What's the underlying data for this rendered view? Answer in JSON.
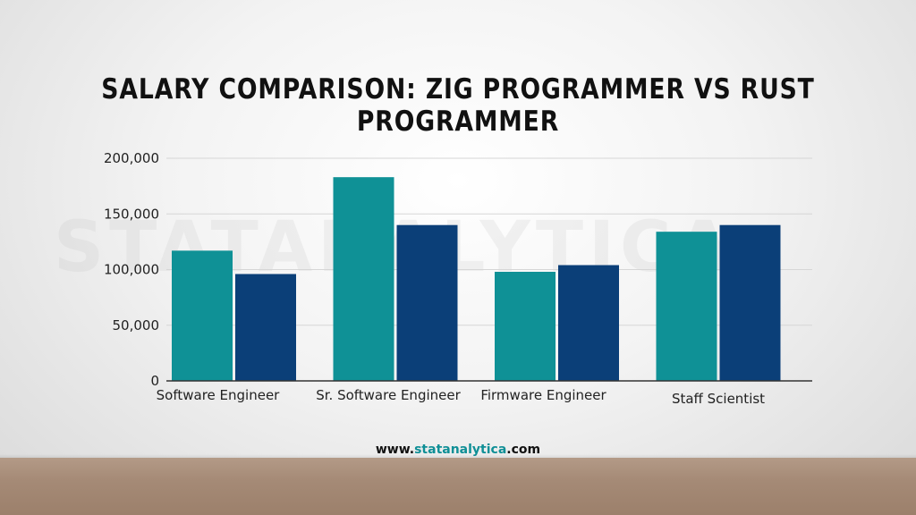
{
  "title": "SALARY COMPARISON: ZIG PROGRAMMER VS RUST PROGRAMMER",
  "footer": {
    "prefix": "www.",
    "brand": "statanalytica",
    "suffix": ".com"
  },
  "watermark": "STATANALYTICA",
  "colors": {
    "series1": "#0f9196",
    "series2": "#0b3f78",
    "grid": "#d6d6d6",
    "axis": "#333333"
  },
  "chart_data": {
    "type": "bar",
    "categories": [
      "Software Engineer",
      "Sr. Software Engineer",
      "Firmware Engineer",
      "Staff Scientist"
    ],
    "series": [
      {
        "values": [
          117000,
          183000,
          98000,
          134000
        ]
      },
      {
        "values": [
          96000,
          140000,
          104000,
          140000
        ]
      }
    ],
    "ylim": [
      0,
      200000
    ],
    "yticks": [
      0,
      50000,
      100000,
      150000,
      200000
    ],
    "ytick_labels": [
      "0",
      "50,000",
      "100,000",
      "150,000",
      "200,000"
    ],
    "grid": true
  }
}
